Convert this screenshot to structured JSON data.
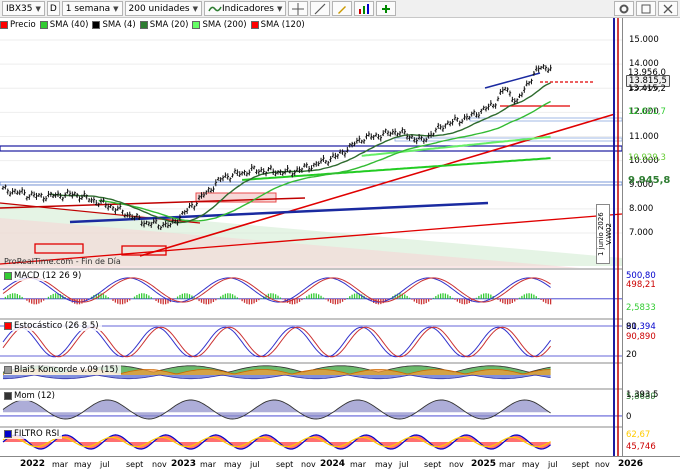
{
  "toolbar": {
    "symbol": "IBX35",
    "period_key": "D",
    "period": "1 semana",
    "units": "200 unidades",
    "indicators": "Indicadores"
  },
  "legend": [
    {
      "label": "Precio",
      "color": "#ff0000"
    },
    {
      "label": "SMA (40)",
      "color": "#33cc33"
    },
    {
      "label": "SMA (4)",
      "color": "#000000"
    },
    {
      "label": "SMA (20)",
      "color": "#2e7d32"
    },
    {
      "label": "SMA (200)",
      "color": "#66ff66"
    },
    {
      "label": "SMA (120)",
      "color": "#ff0000"
    }
  ],
  "price_axis": {
    "ticks": [
      "15.000",
      "14.000",
      "13.000",
      "12.000",
      "11.000",
      "10.000",
      "9.000",
      "8.000",
      "7.000"
    ],
    "labels": [
      {
        "text": "13.956,0",
        "color": "#000000",
        "bg": ""
      },
      {
        "text": "13.815,5",
        "color": "#000000",
        "bg": "#f0f0f0"
      },
      {
        "text": "13.415,2",
        "color": "#000000",
        "bg": ""
      },
      {
        "text": "12.621,7",
        "color": "#33cc33",
        "bg": ""
      },
      {
        "text": "10.929,3",
        "color": "#66cc33",
        "bg": ""
      },
      {
        "text": "9.945,8",
        "color": "#2e7d32",
        "bg": ""
      }
    ]
  },
  "panels": [
    {
      "name": "MACD (12 26 9)",
      "color": "#33cc33",
      "values": [
        {
          "text": "500,80",
          "color": "#0000cc"
        },
        {
          "text": "498,21",
          "color": "#cc0000"
        },
        {
          "text": "2,5833",
          "color": "#33cc33"
        }
      ]
    },
    {
      "name": "Estocástico (26 8 5)",
      "color": "#ff0000",
      "values": [
        {
          "text": "91,394",
          "color": "#0000cc"
        },
        {
          "text": "90,890",
          "color": "#cc0000"
        },
        {
          "text": "80",
          "color": "#000"
        },
        {
          "text": "20",
          "color": "#000"
        }
      ]
    },
    {
      "name": "Blai5 Koncorde v.09 (15)",
      "color": "#999999",
      "values": [
        {
          "text": "5,8689",
          "color": "#2e7d32"
        }
      ]
    },
    {
      "name": "Mom (12)",
      "color": "#333333",
      "values": [
        {
          "text": "1.393,5",
          "color": "#000"
        },
        {
          "text": "0",
          "color": "#000"
        }
      ]
    },
    {
      "name": "FILTRO RSI",
      "color": "#0000cc",
      "values": [
        {
          "text": "62,67",
          "color": "#ffcc00"
        },
        {
          "text": "45,746",
          "color": "#cc0000"
        }
      ]
    }
  ],
  "vertical_note": "1 junio 2026 V.W02",
  "watermark": "ProRealTime.com - Fin de Día",
  "x_axis": [
    {
      "text": "2022",
      "year": true
    },
    {
      "text": "mar",
      "year": false
    },
    {
      "text": "may",
      "year": false
    },
    {
      "text": "jul",
      "year": false
    },
    {
      "text": "sept",
      "year": false
    },
    {
      "text": "nov",
      "year": false
    },
    {
      "text": "2023",
      "year": true
    },
    {
      "text": "mar",
      "year": false
    },
    {
      "text": "may",
      "year": false
    },
    {
      "text": "jul",
      "year": false
    },
    {
      "text": "sept",
      "year": false
    },
    {
      "text": "nov",
      "year": false
    },
    {
      "text": "2024",
      "year": true
    },
    {
      "text": "mar",
      "year": false
    },
    {
      "text": "may",
      "year": false
    },
    {
      "text": "jul",
      "year": false
    },
    {
      "text": "sept",
      "year": false
    },
    {
      "text": "nov",
      "year": false
    },
    {
      "text": "2025",
      "year": true
    },
    {
      "text": "mar",
      "year": false
    },
    {
      "text": "may",
      "year": false
    },
    {
      "text": "jul",
      "year": false
    },
    {
      "text": "sept",
      "year": false
    },
    {
      "text": "nov",
      "year": false
    },
    {
      "text": "2026",
      "year": true
    }
  ]
}
